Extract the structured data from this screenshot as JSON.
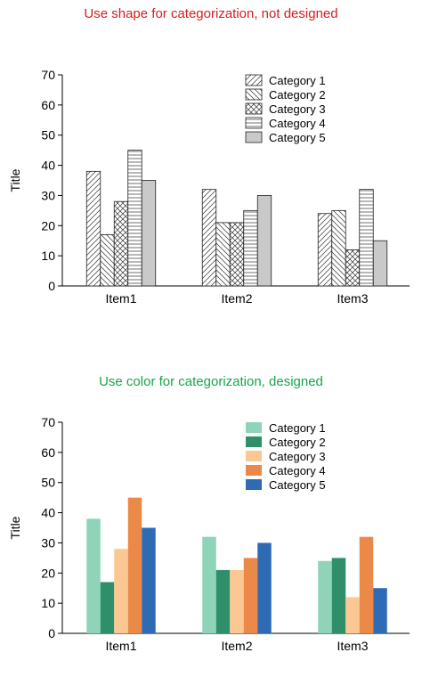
{
  "charts": [
    {
      "caption": "Use shape for categorization, not designed",
      "caption_color": "#d11f1f",
      "style": "pattern"
    },
    {
      "caption": "Use color for categorization, designed",
      "caption_color": "#16a64a",
      "style": "color"
    }
  ],
  "chart_data": [
    {
      "type": "bar",
      "title": "",
      "xlabel": "",
      "ylabel": "Title",
      "categories": [
        "Item1",
        "Item2",
        "Item3"
      ],
      "ylim": [
        0,
        70
      ],
      "yticks": [
        0,
        10,
        20,
        30,
        40,
        50,
        60,
        70
      ],
      "grid": false,
      "legend": "top-right",
      "series": [
        {
          "name": "Category 1",
          "values": [
            38,
            32,
            24
          ],
          "pattern": "diag-right"
        },
        {
          "name": "Category 2",
          "values": [
            17,
            21,
            25
          ],
          "pattern": "diag-left"
        },
        {
          "name": "Category 3",
          "values": [
            28,
            21,
            12
          ],
          "pattern": "crosshatch"
        },
        {
          "name": "Category 4",
          "values": [
            45,
            25,
            32
          ],
          "pattern": "horizontal"
        },
        {
          "name": "Category 5",
          "values": [
            35,
            30,
            15
          ],
          "pattern": "solid-gray"
        }
      ]
    },
    {
      "type": "bar",
      "title": "",
      "xlabel": "",
      "ylabel": "Title",
      "categories": [
        "Item1",
        "Item2",
        "Item3"
      ],
      "ylim": [
        0,
        70
      ],
      "yticks": [
        0,
        10,
        20,
        30,
        40,
        50,
        60,
        70
      ],
      "grid": false,
      "legend": "top-right",
      "series": [
        {
          "name": "Category 1",
          "values": [
            38,
            32,
            24
          ],
          "color": "#8fd3b9"
        },
        {
          "name": "Category 2",
          "values": [
            17,
            21,
            25
          ],
          "color": "#2f8f6a"
        },
        {
          "name": "Category 3",
          "values": [
            28,
            21,
            12
          ],
          "color": "#fbc792"
        },
        {
          "name": "Category 4",
          "values": [
            45,
            25,
            32
          ],
          "color": "#eb8a48"
        },
        {
          "name": "Category 5",
          "values": [
            35,
            30,
            15
          ],
          "color": "#2f6bb5"
        }
      ]
    }
  ]
}
